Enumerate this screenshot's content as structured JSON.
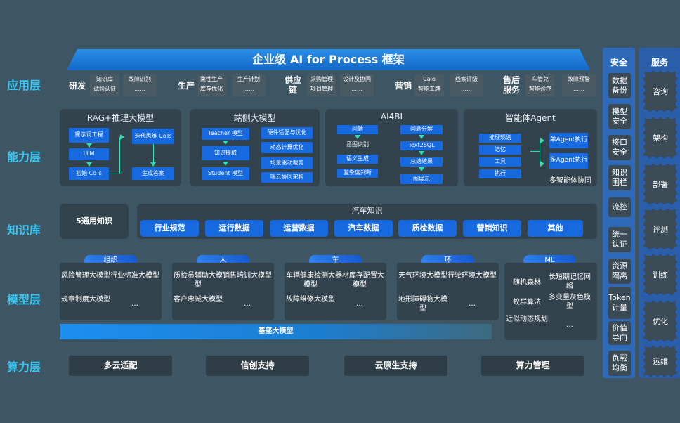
{
  "title": "企业级 AI for Process 框架",
  "layers": {
    "app": "应用层",
    "capability": "能力层",
    "knowledge": "知识库",
    "model": "模型层",
    "compute": "算力层"
  },
  "app": [
    {
      "label": "研发",
      "boxes": [
        [
          "知识库",
          "试验认证"
        ],
        [
          "故障识别",
          "……"
        ]
      ]
    },
    {
      "label": "生产",
      "boxes": [
        [
          "柔性生产",
          "库存优化"
        ],
        [
          "生产计划",
          "……"
        ]
      ]
    },
    {
      "label": "供应链",
      "boxes": [
        [
          "采购管理",
          "项目管理"
        ],
        [
          "设计及协同",
          "……"
        ]
      ]
    },
    {
      "label": "营销",
      "boxes": [
        [
          "Calo",
          "智能工牌"
        ],
        [
          "线索评级",
          "……"
        ]
      ]
    },
    {
      "label": "售后服务",
      "boxes": [
        [
          "车管兑",
          "智能诊疗"
        ],
        [
          "故障预警",
          "……"
        ]
      ]
    }
  ],
  "capability": {
    "rag": {
      "title": "RAG+推理大模型",
      "prompt": "提示词工程",
      "llm": "LLM",
      "init": "初始 CoTs",
      "iter": "迭代思维 CoTs",
      "answer": "生成答案"
    },
    "edge": {
      "title": "端侧大模型",
      "teacher": "Teacher 模型",
      "extract": "知识提取",
      "student": "Student 模型",
      "right": [
        "硬件适配与优化",
        "动态计算优化",
        "场景驱动裁剪",
        "端云协同架构"
      ]
    },
    "bi": {
      "title": "AI4BI",
      "left": [
        "问题",
        "意图识别",
        "语义生成",
        "复杂度判断"
      ],
      "right": [
        "问题分解",
        "Text2SQL",
        "总结结果",
        "图展示"
      ]
    },
    "agent": {
      "title": "智能体Agent",
      "left": [
        "推理规划",
        "记忆",
        "工具",
        "执行"
      ],
      "single": "单Agent执行",
      "multi": "多Agent执行",
      "caption": "多智能体协同"
    }
  },
  "knowledge": {
    "general": "5通用知识",
    "auto_title": "汽车知识",
    "pills": [
      "行业规范",
      "运行数据",
      "运营数据",
      "汽车数据",
      "质检数据",
      "营销知识",
      "其他"
    ]
  },
  "model": {
    "groups": [
      {
        "tab": "组织",
        "items": [
          "风险管理大模型",
          "行业标准大模型",
          "规章制度大模型",
          "…"
        ]
      },
      {
        "tab": "人",
        "items": [
          "质检员辅助大模型",
          "销售培训大模型",
          "客户忠诚大模型",
          "…"
        ]
      },
      {
        "tab": "车",
        "items": [
          "车辆健康检测大模型",
          "器材库存配置大模型",
          "故障维修大模型",
          "…"
        ]
      },
      {
        "tab": "环",
        "items": [
          "天气环境大模型",
          "行驶环境大模型",
          "地形障碍物大模型",
          "…"
        ]
      }
    ],
    "ml": {
      "tab": "ML",
      "items": [
        "随机森林",
        "长短期记忆网络",
        "蚁群算法",
        "多变量灰色模型",
        "近似动态规划",
        "…"
      ]
    },
    "base": "基座大模型"
  },
  "compute": [
    "多云适配",
    "信创支持",
    "云原生支持",
    "算力管理"
  ],
  "security": {
    "title": "安全",
    "items": [
      "数据备份",
      "模型安全",
      "接口安全",
      "知识围栏",
      "流控",
      "统一认证",
      "资源隔离",
      "Token计量",
      "价值导向",
      "负载均衡"
    ]
  },
  "services": {
    "title": "服务",
    "items": [
      "咨询",
      "架构",
      "部署",
      "评测",
      "训练",
      "优化",
      "运维"
    ]
  }
}
